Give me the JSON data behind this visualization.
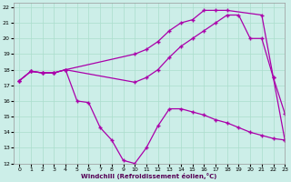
{
  "xlabel": "Windchill (Refroidissement éolien,°C)",
  "bg_color": "#cceee8",
  "grid_color": "#aaddcc",
  "line_color": "#aa00aa",
  "xlim": [
    -0.5,
    23
  ],
  "ylim": [
    12,
    22.3
  ],
  "xticks": [
    0,
    1,
    2,
    3,
    4,
    5,
    6,
    7,
    8,
    9,
    10,
    11,
    12,
    13,
    14,
    15,
    16,
    17,
    18,
    19,
    20,
    21,
    22,
    23
  ],
  "yticks": [
    12,
    13,
    14,
    15,
    16,
    17,
    18,
    19,
    20,
    21,
    22
  ],
  "line1_x": [
    0,
    1,
    2,
    3,
    4,
    10,
    11,
    12,
    13,
    14,
    15,
    16,
    17,
    18,
    21,
    22,
    23
  ],
  "line1_y": [
    17.3,
    17.9,
    17.8,
    17.8,
    18.0,
    19.0,
    19.3,
    19.8,
    20.5,
    21.0,
    21.2,
    21.8,
    21.8,
    21.8,
    21.5,
    17.5,
    15.2
  ],
  "line2_x": [
    0,
    1,
    2,
    3,
    4,
    10,
    11,
    12,
    13,
    14,
    15,
    16,
    17,
    18,
    19,
    20,
    21,
    22,
    23
  ],
  "line2_y": [
    17.3,
    17.9,
    17.8,
    17.8,
    18.0,
    17.2,
    17.5,
    18.0,
    18.8,
    19.5,
    20.0,
    20.5,
    21.0,
    21.5,
    21.5,
    20.0,
    20.0,
    17.5,
    13.5
  ],
  "line3_x": [
    0,
    1,
    2,
    3,
    4,
    5,
    6,
    7,
    8,
    9,
    10,
    11,
    12,
    13,
    14,
    15,
    16,
    17,
    18,
    19,
    20,
    21,
    22,
    23
  ],
  "line3_y": [
    17.3,
    17.9,
    17.8,
    17.8,
    18.0,
    16.0,
    15.9,
    14.3,
    13.5,
    12.2,
    12.0,
    13.0,
    14.4,
    15.5,
    15.5,
    15.3,
    15.1,
    14.8,
    14.6,
    14.3,
    14.0,
    13.8,
    13.6,
    13.5
  ]
}
